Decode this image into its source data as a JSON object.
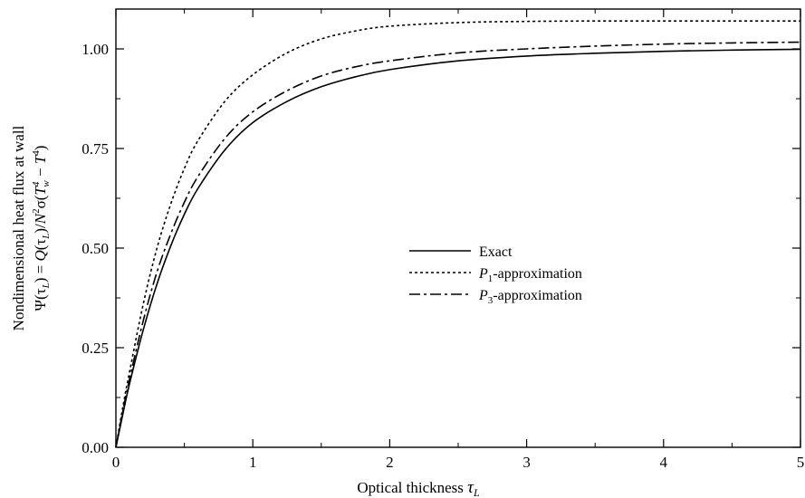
{
  "chart_data": {
    "type": "line",
    "xlabel": "Optical thickness",
    "xlabel_symbol": "τ",
    "xlabel_subscript": "L",
    "ylabel_line1": "Nondimensional heat flux at wall",
    "ylabel_line2": {
      "a": "Ψ(τ",
      "a_sub": "L",
      "b": ") = ",
      "c": "Q",
      "d": "(τ",
      "d_sub": "L",
      "e": ")/",
      "f": "N",
      "f_sup": "2",
      "g": "σ(",
      "h": "T",
      "h_sub": "w",
      "h_sup": "4",
      "i": " − ",
      "j": "T",
      "j_sup": "4",
      "k": ")"
    },
    "xlim": [
      0,
      5
    ],
    "ylim": [
      0,
      1.1
    ],
    "xticks": [
      0,
      1,
      2,
      3,
      4,
      5
    ],
    "xtick_labels": [
      "0",
      "1",
      "2",
      "3",
      "4",
      "5"
    ],
    "yticks": [
      0,
      0.25,
      0.5,
      0.75,
      1.0
    ],
    "ytick_labels": [
      "0.00",
      "0.25",
      "0.50",
      "0.75",
      "1.00"
    ],
    "grid": false,
    "legend_position": "center-right",
    "x": [
      0,
      0.05,
      0.1,
      0.2,
      0.3,
      0.4,
      0.5,
      0.6,
      0.8,
      1.0,
      1.25,
      1.5,
      1.75,
      2.0,
      2.5,
      3.0,
      3.5,
      4.0,
      4.5,
      5.0
    ],
    "series": [
      {
        "name": "Exact",
        "name_prefix": "",
        "name_sub": "",
        "name_rest": "Exact",
        "dash": "solid",
        "values": [
          0,
          0.082,
          0.16,
          0.295,
          0.41,
          0.505,
          0.585,
          0.65,
          0.748,
          0.815,
          0.868,
          0.905,
          0.93,
          0.948,
          0.97,
          0.982,
          0.989,
          0.994,
          0.997,
          0.999
        ]
      },
      {
        "name": "P1-approximation",
        "name_prefix": "P",
        "name_sub": "1",
        "name_rest": "-approximation",
        "dash": "dotted",
        "values": [
          0,
          0.1,
          0.19,
          0.36,
          0.5,
          0.61,
          0.7,
          0.77,
          0.87,
          0.935,
          0.99,
          1.025,
          1.045,
          1.057,
          1.066,
          1.069,
          1.07,
          1.07,
          1.07,
          1.07
        ]
      },
      {
        "name": "P3-approximation",
        "name_prefix": "P",
        "name_sub": "3",
        "name_rest": "-approximation",
        "dash": "dashdot",
        "values": [
          0,
          0.09,
          0.172,
          0.318,
          0.44,
          0.535,
          0.615,
          0.68,
          0.777,
          0.842,
          0.895,
          0.932,
          0.955,
          0.97,
          0.99,
          1.0,
          1.007,
          1.012,
          1.015,
          1.017
        ]
      }
    ]
  }
}
